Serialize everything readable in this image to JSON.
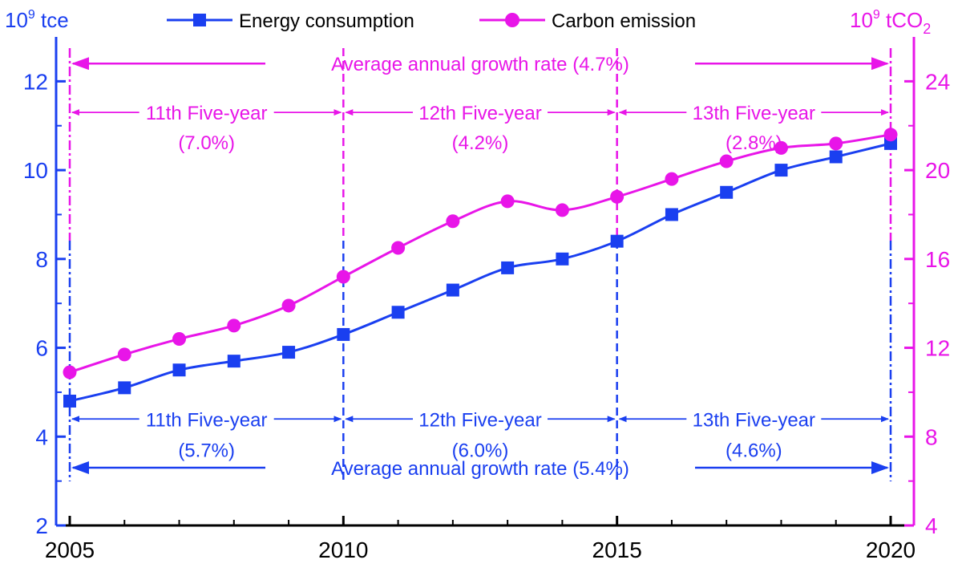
{
  "chart_data": {
    "type": "line",
    "x": [
      2005,
      2006,
      2007,
      2008,
      2009,
      2010,
      2011,
      2012,
      2013,
      2014,
      2015,
      2016,
      2017,
      2018,
      2019,
      2020
    ],
    "series": [
      {
        "name": "Energy consumption",
        "axis": "left",
        "color": "#1a3ff0",
        "marker": "square",
        "values": [
          4.8,
          5.1,
          5.5,
          5.7,
          5.9,
          6.3,
          6.8,
          7.3,
          7.8,
          8.0,
          8.4,
          9.0,
          9.5,
          10.0,
          10.3,
          10.6
        ]
      },
      {
        "name": "Carbon emission",
        "axis": "right",
        "color": "#e815e8",
        "marker": "circle",
        "values": [
          10.9,
          11.7,
          12.4,
          13.0,
          13.9,
          15.2,
          16.5,
          17.7,
          18.6,
          18.2,
          18.8,
          19.6,
          20.4,
          21.0,
          21.2,
          21.6
        ]
      }
    ],
    "xlim": [
      2005,
      2020
    ],
    "xticks": [
      2005,
      2010,
      2015,
      2020
    ],
    "ylim_left": [
      2,
      13
    ],
    "yticks_left": [
      2,
      4,
      6,
      8,
      10,
      12
    ],
    "ylim_right": [
      4,
      26
    ],
    "yticks_right": [
      4,
      8,
      12,
      16,
      20,
      24
    ],
    "ylabel_left": "10^9 tce",
    "ylabel_left_base": "10",
    "ylabel_left_sup": "9",
    "ylabel_left_unit": " tce",
    "ylabel_right": "10^9 tCO2",
    "ylabel_right_base": "10",
    "ylabel_right_sup": "9",
    "ylabel_right_unit": " tCO",
    "ylabel_right_sub": "2",
    "legend_position": "top",
    "period_boundaries": [
      2005,
      2010,
      2015,
      2020
    ],
    "carbon_annotations": {
      "overall": {
        "label": "Average annual growth rate (4.7%)",
        "from": 2005,
        "to": 2020,
        "y": 24.8
      },
      "periods": [
        {
          "name": "11th Five-year",
          "rate": "(7.0%)",
          "from": 2005,
          "to": 2010
        },
        {
          "name": "12th Five-year",
          "rate": "(4.2%)",
          "from": 2010,
          "to": 2015
        },
        {
          "name": "13th Five-year",
          "rate": "(2.8%)",
          "from": 2015,
          "to": 2020
        }
      ],
      "period_arrow_y": 22.6
    },
    "energy_annotations": {
      "overall": {
        "label": "Average annual growth rate  (5.4%)",
        "from": 2005,
        "to": 2020,
        "y": 3.3
      },
      "periods": [
        {
          "name": "11th Five-year",
          "rate": "(5.7%)",
          "from": 2005,
          "to": 2010
        },
        {
          "name": "12th Five-year",
          "rate": "(6.0%)",
          "from": 2010,
          "to": 2015
        },
        {
          "name": "13th Five-year",
          "rate": "(4.6%)",
          "from": 2015,
          "to": 2020
        }
      ],
      "period_arrow_y": 4.0
    },
    "colors": {
      "energy": "#1a3ff0",
      "carbon": "#e815e8",
      "axis_left": "#1a3ff0",
      "axis_right": "#e815e8",
      "axis_bottom": "#000000"
    }
  }
}
